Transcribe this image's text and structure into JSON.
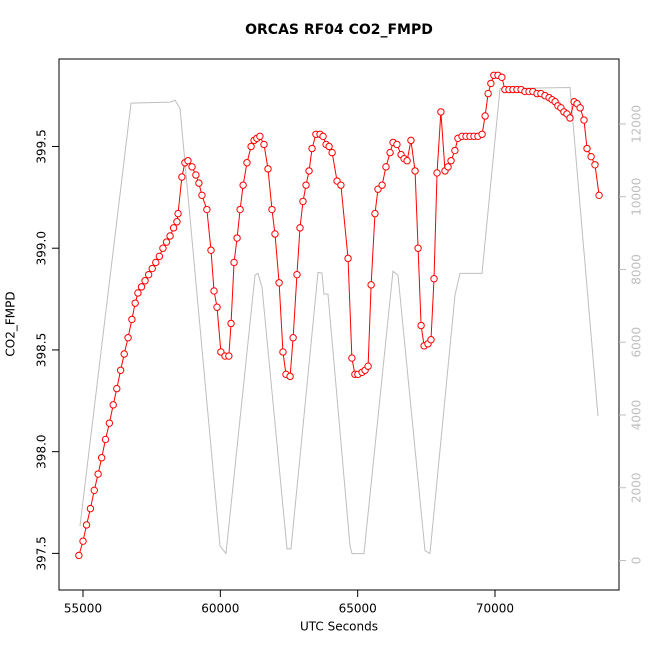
{
  "chart_data": {
    "type": "line",
    "title": "ORCAS RF04 CO2_FMPD",
    "x_label": "UTC Seconds",
    "y_label": "CO2_FMPD",
    "xlim": [
      54126,
      74515
    ],
    "ylim": [
      397.32,
      399.93
    ],
    "y2lim": [
      -811,
      13784
    ],
    "xticks": [
      55000,
      60000,
      65000,
      70000
    ],
    "yticks": [
      397.5,
      {
        "value": 398,
        "label": "398.0"
      },
      398.5,
      {
        "value": 399,
        "label": "399.0"
      },
      399.5
    ],
    "y2ticks": [
      0,
      2000,
      4000,
      6000,
      8000,
      10000,
      12000
    ],
    "y2tick_color": "#bebebe",
    "series": [
      {
        "color": "#ff0000",
        "markers": true,
        "x": [
          54850,
          55000,
          55130,
          55270,
          55410,
          55550,
          55680,
          55820,
          55960,
          56100,
          56230,
          56370,
          56500,
          56640,
          56780,
          56900,
          57000,
          57130,
          57260,
          57390,
          57520,
          57650,
          57780,
          57910,
          58040,
          58170,
          58300,
          58420,
          58460,
          58600,
          58710,
          58820,
          58970,
          59110,
          59220,
          59330,
          59510,
          59660,
          59770,
          59880,
          60020,
          60170,
          60310,
          60390,
          60500,
          60610,
          60720,
          60830,
          60970,
          61120,
          61230,
          61330,
          61440,
          61590,
          61735,
          61880,
          61990,
          62140,
          62280,
          62390,
          62540,
          62650,
          62790,
          62900,
          63010,
          63120,
          63230,
          63340,
          63480,
          63630,
          63740,
          63850,
          63960,
          64070,
          64250,
          64390,
          64650,
          64790,
          64900,
          65010,
          65160,
          65270,
          65380,
          65490,
          65630,
          65740,
          65890,
          66030,
          66180,
          66290,
          66430,
          66580,
          66690,
          66800,
          66940,
          67090,
          67200,
          67310,
          67420,
          67560,
          67670,
          67780,
          67890,
          68030,
          68180,
          68290,
          68400,
          68540,
          68650,
          68800,
          68945,
          69090,
          69235,
          69380,
          69530,
          69640,
          69750,
          69850,
          69960,
          70110,
          70250,
          70360,
          70510,
          70655,
          70800,
          70950,
          71090,
          71240,
          71380,
          71530,
          71670,
          71820,
          71970,
          72080,
          72190,
          72290,
          72400,
          72510,
          72620,
          72730,
          72880,
          72990,
          73100,
          73240,
          73350,
          73500,
          73640,
          73790
        ],
        "values": [
          397.49,
          397.56,
          397.64,
          397.72,
          397.81,
          397.89,
          397.97,
          398.06,
          398.14,
          398.23,
          398.31,
          398.4,
          398.48,
          398.56,
          398.65,
          398.73,
          398.78,
          398.81,
          398.84,
          398.87,
          398.9,
          398.93,
          398.96,
          399.0,
          399.03,
          399.06,
          399.1,
          399.13,
          399.17,
          399.35,
          399.42,
          399.43,
          399.4,
          399.36,
          399.32,
          399.26,
          399.19,
          398.99,
          398.79,
          398.71,
          398.49,
          398.47,
          398.47,
          398.63,
          398.93,
          399.05,
          399.19,
          399.31,
          399.42,
          399.5,
          399.53,
          399.54,
          399.55,
          399.51,
          399.39,
          399.19,
          399.07,
          398.83,
          398.49,
          398.38,
          398.37,
          398.56,
          398.87,
          399.1,
          399.23,
          399.31,
          399.38,
          399.49,
          399.56,
          399.56,
          399.55,
          399.51,
          399.5,
          399.47,
          399.33,
          399.31,
          398.95,
          398.46,
          398.38,
          398.38,
          398.39,
          398.4,
          398.42,
          398.82,
          399.17,
          399.29,
          399.31,
          399.4,
          399.47,
          399.52,
          399.51,
          399.46,
          399.44,
          399.43,
          399.53,
          399.38,
          399.0,
          398.62,
          398.52,
          398.53,
          398.55,
          398.85,
          399.37,
          399.67,
          399.38,
          399.4,
          399.43,
          399.48,
          399.54,
          399.55,
          399.55,
          399.55,
          399.55,
          399.55,
          399.56,
          399.65,
          399.76,
          399.81,
          399.85,
          399.85,
          399.84,
          399.78,
          399.78,
          399.78,
          399.78,
          399.78,
          399.77,
          399.77,
          399.77,
          399.76,
          399.76,
          399.75,
          399.74,
          399.73,
          399.72,
          399.7,
          399.69,
          399.67,
          399.66,
          399.64,
          399.72,
          399.71,
          399.69,
          399.63,
          399.49,
          399.45,
          399.41,
          399.26
        ]
      },
      {
        "color": "#bebebe",
        "axis": "y2",
        "markers": false,
        "x": [
          54890,
          56748,
          58168,
          58350,
          58532,
          59988,
          60206,
          61262,
          61371,
          61517,
          62427,
          62573,
          63556,
          63701,
          63774,
          63920,
          64721,
          64794,
          65230,
          66286,
          66469,
          67451,
          67633,
          68544,
          68726,
          69527,
          70182,
          72731,
          73750
        ],
        "values": [
          946,
          12570,
          12600,
          12650,
          12430,
          400,
          190,
          7840,
          7890,
          7510,
          320,
          320,
          7920,
          7900,
          7320,
          7320,
          400,
          190,
          190,
          7950,
          7840,
          270,
          190,
          7300,
          7890,
          7890,
          12970,
          13000,
          3970
        ]
      }
    ]
  }
}
